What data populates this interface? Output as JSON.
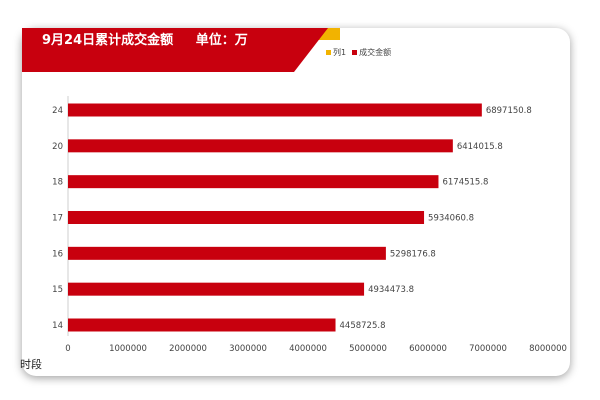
{
  "header": {
    "title": "9月24日累计成交金额     单位：万"
  },
  "colors": {
    "banner_red": "#c8000e",
    "banner_gold": "#f2b300",
    "bar": "#c8000e"
  },
  "legend": [
    {
      "label": "列1",
      "color": "#f2b300"
    },
    {
      "label": "成交金额",
      "color": "#c8000e"
    }
  ],
  "chart_data": {
    "type": "bar",
    "orientation": "horizontal",
    "title": "9月24日累计成交金额     单位：万",
    "ylabel": "时段",
    "xlabel": "",
    "categories": [
      "24",
      "20",
      "18",
      "17",
      "16",
      "15",
      "14"
    ],
    "series": [
      {
        "name": "成交金额",
        "values": [
          6897150.8,
          6414015.8,
          6174515.8,
          5934060.8,
          5298176.8,
          4934473.8,
          4458725.8
        ]
      }
    ],
    "value_labels": [
      "6897150.8",
      "6414015.8",
      "6174515.8",
      "5934060.8",
      "5298176.8",
      "4934473.8",
      "4458725.8"
    ],
    "xlim": [
      0,
      8000000
    ],
    "xticks": [
      "0",
      "1000000",
      "2000000",
      "3000000",
      "4000000",
      "5000000",
      "6000000",
      "7000000",
      "8000000"
    ],
    "grid": false,
    "legend_position": "top-right"
  }
}
